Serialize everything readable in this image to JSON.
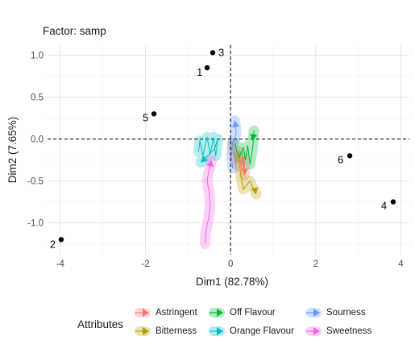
{
  "title": "Factor: samp",
  "chart_data": {
    "type": "scatter",
    "xlabel": "Dim1 (82.78%)",
    "ylabel": "Dim2 (7.65%)",
    "xlim": [
      -4.3,
      4.2
    ],
    "ylim": [
      -1.38,
      1.12
    ],
    "x_ticks": [
      -4,
      -2,
      0,
      2,
      4
    ],
    "y_ticks": [
      -1.0,
      -0.5,
      0.0,
      0.5,
      1.0
    ],
    "x_tick_labels": [
      "-4",
      "-2",
      "0",
      "2",
      "4"
    ],
    "y_tick_labels": [
      "-1.0",
      "-0.5",
      "0.0",
      "0.5",
      "1.0"
    ],
    "grid": true,
    "reference_lines": {
      "x": 0,
      "y": 0
    },
    "points": [
      {
        "label": "1",
        "x": -0.55,
        "y": 0.85
      },
      {
        "label": "2",
        "x": -3.98,
        "y": -1.2
      },
      {
        "label": "3",
        "x": -0.42,
        "y": 1.03
      },
      {
        "label": "4",
        "x": 3.82,
        "y": -0.75
      },
      {
        "label": "5",
        "x": -1.8,
        "y": 0.3
      },
      {
        "label": "6",
        "x": 2.8,
        "y": -0.2
      }
    ],
    "legend": {
      "title": "Attributes",
      "placement": "bottom",
      "items": [
        {
          "name": "Astringent",
          "color": "#F8766D"
        },
        {
          "name": "Bitterness",
          "color": "#B79F00"
        },
        {
          "name": "Off Flavour",
          "color": "#00BA38"
        },
        {
          "name": "Orange Flavour",
          "color": "#00BFC4"
        },
        {
          "name": "Sourness",
          "color": "#619CFF"
        },
        {
          "name": "Sweetness",
          "color": "#F564E3"
        }
      ]
    },
    "series": [
      {
        "name": "Astringent",
        "color": "#F8766D",
        "path": [
          [
            0.05,
            -0.05
          ],
          [
            0.08,
            -0.18
          ],
          [
            0.12,
            -0.3
          ],
          [
            0.2,
            -0.15
          ],
          [
            0.25,
            -0.35
          ],
          [
            0.28,
            -0.2
          ],
          [
            0.3,
            -0.35
          ],
          [
            0.32,
            -0.22
          ],
          [
            0.33,
            -0.43
          ]
        ]
      },
      {
        "name": "Bitterness",
        "color": "#B79F00",
        "path": [
          [
            0.18,
            -0.2
          ],
          [
            0.22,
            -0.35
          ],
          [
            0.26,
            -0.5
          ],
          [
            0.3,
            -0.6
          ],
          [
            0.38,
            -0.55
          ],
          [
            0.45,
            -0.5
          ],
          [
            0.52,
            -0.58
          ],
          [
            0.58,
            -0.62
          ],
          [
            0.6,
            -0.66
          ]
        ]
      },
      {
        "name": "Off Flavour",
        "color": "#00BA38",
        "path": [
          [
            0.1,
            -0.05
          ],
          [
            0.15,
            -0.15
          ],
          [
            0.2,
            -0.22
          ],
          [
            0.3,
            -0.1
          ],
          [
            0.35,
            -0.25
          ],
          [
            0.4,
            -0.08
          ],
          [
            0.46,
            -0.3
          ],
          [
            0.52,
            -0.1
          ],
          [
            0.55,
            0.1
          ],
          [
            0.52,
            -0.02
          ]
        ]
      },
      {
        "name": "Orange Flavour",
        "color": "#00BFC4",
        "path": [
          [
            -0.75,
            -0.15
          ],
          [
            -0.72,
            -0.02
          ],
          [
            -0.65,
            -0.2
          ],
          [
            -0.55,
            0.02
          ],
          [
            -0.48,
            -0.18
          ],
          [
            -0.4,
            0.02
          ],
          [
            -0.35,
            -0.2
          ],
          [
            -0.3,
            0.0
          ],
          [
            -0.38,
            -0.12
          ],
          [
            -0.7,
            -0.28
          ]
        ]
      },
      {
        "name": "Sourness",
        "color": "#619CFF",
        "path": [
          [
            0.05,
            -0.35
          ],
          [
            0.02,
            -0.2
          ],
          [
            0.04,
            -0.05
          ],
          [
            0.1,
            0.0
          ],
          [
            0.13,
            0.08
          ],
          [
            0.12,
            0.15
          ],
          [
            0.1,
            0.22
          ]
        ]
      },
      {
        "name": "Sweetness",
        "color": "#F564E3",
        "path": [
          [
            -0.6,
            -1.25
          ],
          [
            -0.58,
            -1.1
          ],
          [
            -0.52,
            -0.95
          ],
          [
            -0.48,
            -0.8
          ],
          [
            -0.5,
            -0.65
          ],
          [
            -0.55,
            -0.5
          ],
          [
            -0.52,
            -0.4
          ],
          [
            -0.48,
            -0.32
          ],
          [
            -0.45,
            -0.25
          ]
        ]
      }
    ]
  }
}
